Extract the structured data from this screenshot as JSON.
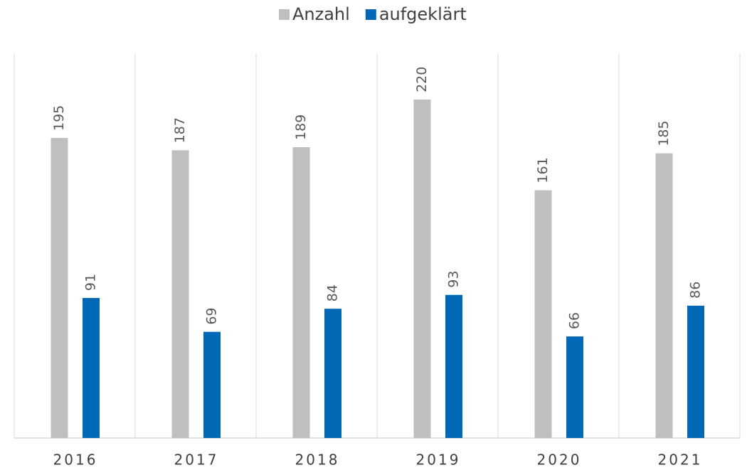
{
  "chart_data": {
    "type": "bar",
    "categories": [
      "2016",
      "2017",
      "2018",
      "2019",
      "2020",
      "2021"
    ],
    "series": [
      {
        "name": "Anzahl",
        "color": "#bfbfbf",
        "values": [
          195,
          187,
          189,
          220,
          161,
          185
        ]
      },
      {
        "name": "aufgeklärt",
        "color": "#0068b4",
        "values": [
          91,
          69,
          84,
          93,
          66,
          86
        ]
      }
    ],
    "ylim": [
      0,
      250
    ],
    "legend": "top"
  }
}
